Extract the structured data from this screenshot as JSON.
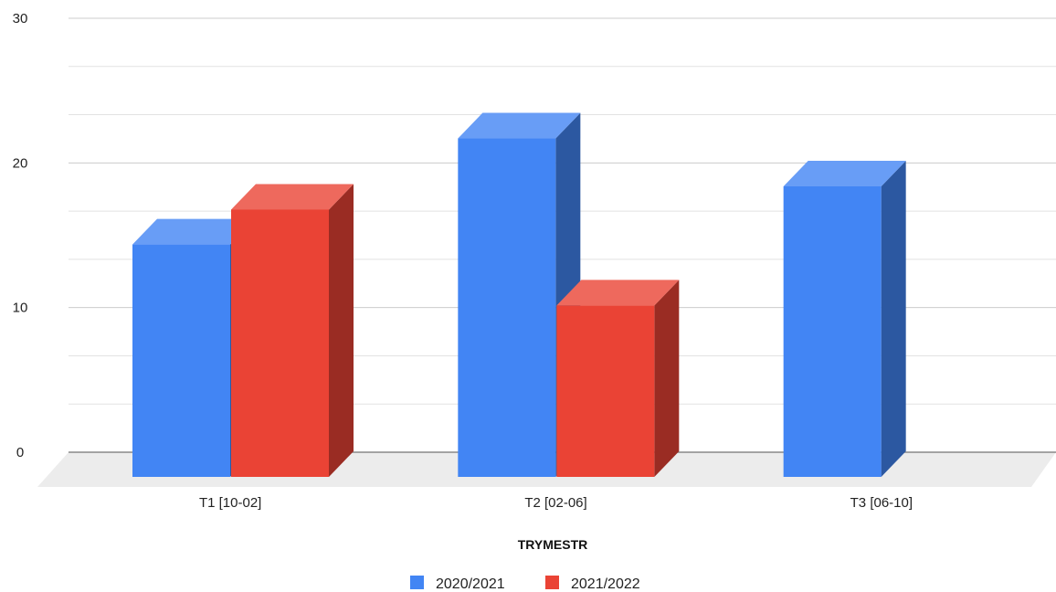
{
  "chart_data": {
    "type": "bar",
    "style": "3d-column",
    "title": "",
    "xlabel": "TRYMESTR",
    "ylabel": "",
    "ylim": [
      0,
      30
    ],
    "yticks": [
      0,
      10,
      20,
      30
    ],
    "grid": true,
    "legend_position": "bottom",
    "categories": [
      "T1 [10-02]",
      "T2 [02-06]",
      "T3 [06-10]"
    ],
    "series": [
      {
        "name": "2020/2021",
        "color": "#4285f4",
        "values": [
          16,
          23.3,
          20
        ]
      },
      {
        "name": "2021/2022",
        "color": "#ea4335",
        "values": [
          18.4,
          11.8,
          null
        ]
      }
    ]
  }
}
